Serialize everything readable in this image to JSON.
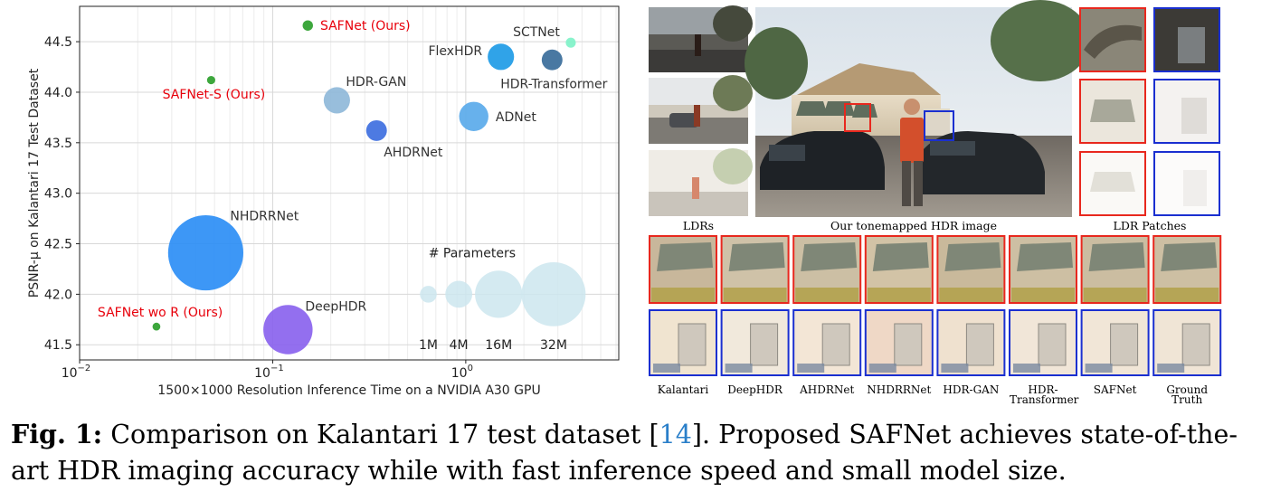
{
  "chart_data": {
    "type": "scatter",
    "xscale": "log",
    "xlim": [
      0.01,
      6.2
    ],
    "ylim": [
      41.35,
      44.85
    ],
    "xlabel": "1500×1000 Resolution Inference Time on a NVIDIA A30 GPU",
    "ylabel": "PSNR-μ on Kalantari 17 Test Dataset",
    "xticks": [
      {
        "value": 0.01,
        "base": "10",
        "exp": "−2"
      },
      {
        "value": 0.1,
        "base": "10",
        "exp": "−1"
      },
      {
        "value": 1,
        "base": "10",
        "exp": "0"
      }
    ],
    "yticks": [
      41.5,
      42.0,
      42.5,
      43.0,
      43.5,
      44.0,
      44.5
    ],
    "grid": true,
    "points": [
      {
        "label": "SAFNet (Ours)",
        "x": 0.152,
        "y": 44.66,
        "params_m": 1.1,
        "color": "#2ca02c",
        "label_color": "#e8000b",
        "label_pos": "right"
      },
      {
        "label": "SAFNet-S (Ours)",
        "x": 0.048,
        "y": 44.12,
        "params_m": 0.5,
        "color": "#2ca02c",
        "label_color": "#e8000b",
        "label_pos": "below-left"
      },
      {
        "label": "SAFNet wo R (Ours)",
        "x": 0.025,
        "y": 41.68,
        "params_m": 0.4,
        "color": "#2ca02c",
        "label_color": "#e8000b",
        "label_pos": "above-left"
      },
      {
        "label": "SCTNet",
        "x": 3.5,
        "y": 44.49,
        "params_m": 1.0,
        "color": "#7ff2c8",
        "label_color": "#333333",
        "label_pos": "above-left"
      },
      {
        "label": "FlexHDR",
        "x": 1.52,
        "y": 44.35,
        "params_m": 3.0,
        "color": "#1e9be6",
        "label_color": "#333333",
        "label_pos": "left"
      },
      {
        "label": "HDR-Transformer",
        "x": 2.8,
        "y": 44.32,
        "params_m": 1.5,
        "color": "#3a6d9a",
        "label_color": "#333333",
        "label_pos": "below"
      },
      {
        "label": "HDR-GAN",
        "x": 0.215,
        "y": 43.92,
        "params_m": 3.0,
        "color": "#8fb9d9",
        "label_color": "#333333",
        "label_pos": "above-right"
      },
      {
        "label": "ADNet",
        "x": 1.1,
        "y": 43.76,
        "params_m": 4.0,
        "color": "#5aaaea",
        "label_color": "#333333",
        "label_pos": "right"
      },
      {
        "label": "AHDRNet",
        "x": 0.345,
        "y": 43.62,
        "params_m": 1.5,
        "color": "#3e6fe0",
        "label_color": "#333333",
        "label_pos": "below-right"
      },
      {
        "label": "NHDRRNet",
        "x": 0.045,
        "y": 42.41,
        "params_m": 38.0,
        "color": "#2c8ef5",
        "label_color": "#333333",
        "label_pos": "above-right"
      },
      {
        "label": "DeepHDR",
        "x": 0.12,
        "y": 41.65,
        "params_m": 14.5,
        "color": "#8a63ee",
        "label_color": "#333333",
        "label_pos": "above-right"
      }
    ],
    "size_legend": {
      "title": "# Parameters",
      "color": "#cce6ee",
      "entries": [
        {
          "label": "1M",
          "params_m": 1,
          "x": 0.64
        },
        {
          "label": "4M",
          "params_m": 4,
          "x": 0.92
        },
        {
          "label": "16M",
          "params_m": 16,
          "x": 1.48
        },
        {
          "label": "32M",
          "params_m": 32,
          "x": 2.85
        }
      ],
      "y": 42.0
    }
  },
  "figure": {
    "captions": {
      "ldrs": "LDRs",
      "tonemapped": "Our tonemapped HDR image",
      "patches": "LDR Patches",
      "methods": [
        "Kalantari",
        "DeepHDR",
        "AHDRNet",
        "NHDRRNet",
        "HDR-GAN",
        "HDR-\nTransformer",
        "SAFNet",
        "Ground Truth"
      ]
    },
    "colors": {
      "red_box": "#e8281e",
      "blue_box": "#1a2fd0"
    }
  },
  "caption": {
    "fig_label": "Fig. 1:",
    "text_before_ref": "Comparison on Kalantari 17 test dataset [",
    "ref": "14",
    "text_after_ref": "]. Proposed SAFNet achieves state-of-the-art HDR imaging accuracy while with fast inference speed and small model size."
  }
}
